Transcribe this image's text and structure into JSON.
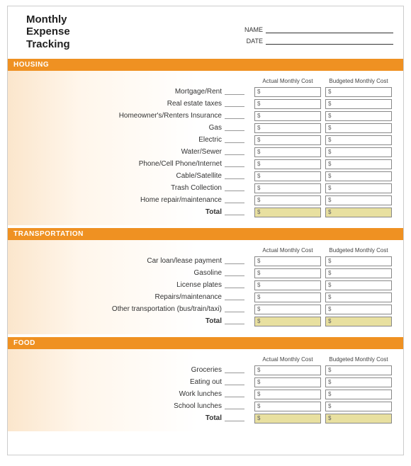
{
  "title_lines": [
    "Monthly",
    "Expense",
    "Tracking"
  ],
  "name_label": "NAME",
  "date_label": "DATE",
  "col_actual": "Actual Monthly Cost",
  "col_budget": "Budgeted Monthly Cost",
  "currency": "$",
  "colors": {
    "section_bar": "#ef9122",
    "total_cell_bg": "#e8e0a0",
    "gradient_start": "#fbe6cc"
  },
  "sections": [
    {
      "heading": "HOUSING",
      "rows": [
        "Mortgage/Rent",
        "Real estate taxes",
        "Homeowner's/Renters Insurance",
        "Gas",
        "Electric",
        "Water/Sewer",
        "Phone/Cell Phone/Internet",
        "Cable/Satellite",
        "Trash Collection",
        "Home repair/maintenance"
      ],
      "total_label": "Total"
    },
    {
      "heading": "TRANSPORTATION",
      "rows": [
        "Car loan/lease payment",
        "Gasoline",
        "License plates",
        "Repairs/maintenance",
        "Other transportation (bus/train/taxi)"
      ],
      "total_label": "Total"
    },
    {
      "heading": "FOOD",
      "rows": [
        "Groceries",
        "Eating out",
        "Work lunches",
        "School lunches"
      ],
      "total_label": "Total"
    }
  ]
}
